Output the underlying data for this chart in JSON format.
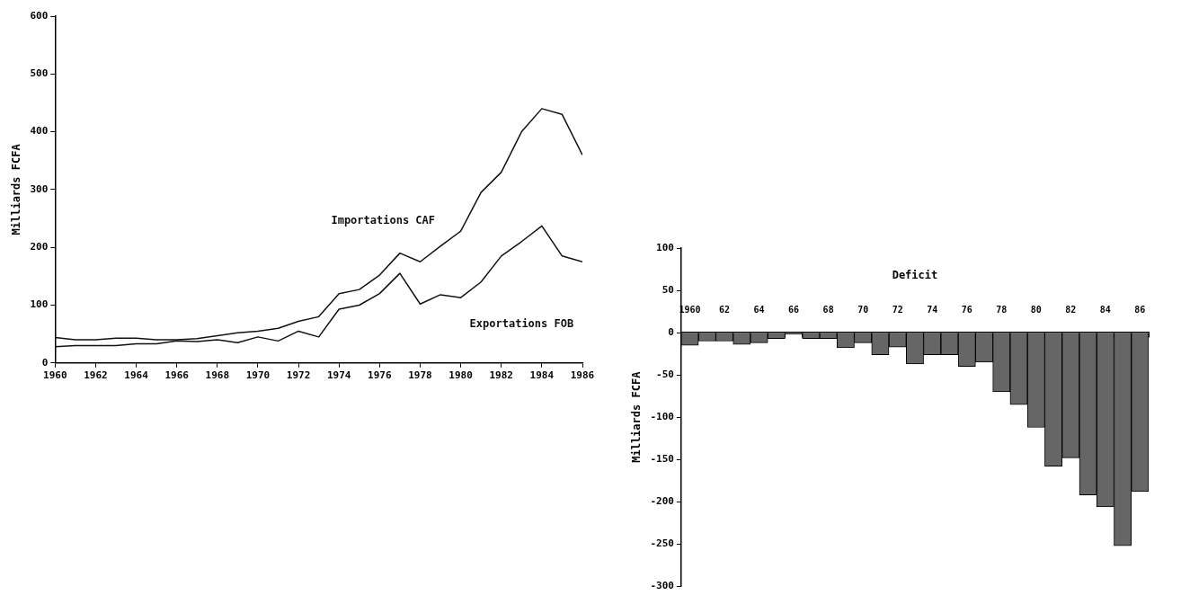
{
  "chart_data": [
    {
      "type": "line",
      "ylabel": "Milliards FCFA",
      "x": [
        1960,
        1961,
        1962,
        1963,
        1964,
        1965,
        1966,
        1967,
        1968,
        1969,
        1970,
        1971,
        1972,
        1973,
        1974,
        1975,
        1976,
        1977,
        1978,
        1979,
        1980,
        1981,
        1982,
        1983,
        1984,
        1985,
        1986
      ],
      "series": [
        {
          "name": "Importations CAF",
          "color": "#111111",
          "values": [
            44,
            40,
            40,
            43,
            43,
            40,
            40,
            42,
            47,
            52,
            55,
            60,
            72,
            80,
            120,
            127,
            152,
            190,
            175,
            202,
            228,
            295,
            330,
            400,
            440,
            430,
            360
          ]
        },
        {
          "name": "Exportations FOB",
          "color": "#111111",
          "values": [
            28,
            30,
            30,
            30,
            33,
            33,
            38,
            37,
            40,
            35,
            45,
            38,
            55,
            45,
            93,
            100,
            120,
            155,
            102,
            118,
            113,
            140,
            185,
            210,
            237,
            185,
            175
          ]
        }
      ],
      "xlim": [
        1960,
        1986
      ],
      "xticks": [
        1960,
        1962,
        1964,
        1966,
        1968,
        1970,
        1972,
        1974,
        1976,
        1978,
        1980,
        1982,
        1984,
        1986
      ],
      "ylim": [
        0,
        600
      ],
      "yticks": [
        0,
        100,
        200,
        300,
        400,
        500,
        600
      ],
      "grid": false,
      "legend": false,
      "marker": "none",
      "line_style": "solid"
    },
    {
      "type": "bar",
      "title": "Deficit",
      "ylabel": "Milliards FCFA",
      "categories": [
        "1960",
        null,
        "62",
        null,
        "64",
        null,
        "66",
        null,
        "68",
        null,
        "70",
        null,
        "72",
        null,
        "74",
        null,
        "76",
        null,
        "78",
        null,
        "80",
        null,
        "82",
        null,
        "84",
        null,
        "86"
      ],
      "values": [
        -15,
        -10,
        -10,
        -14,
        -12,
        -7,
        -2,
        -7,
        -7,
        -18,
        -12,
        -26,
        -17,
        -37,
        -26,
        -26,
        -40,
        -35,
        -70,
        -85,
        -112,
        -158,
        -148,
        -192,
        -206,
        -252,
        -188
      ],
      "color": "#666666",
      "ylim": [
        -300,
        100
      ],
      "yticks": [
        100,
        50,
        0,
        -50,
        -100,
        -150,
        -200,
        -250,
        -300
      ],
      "grid": false,
      "legend": false
    }
  ]
}
